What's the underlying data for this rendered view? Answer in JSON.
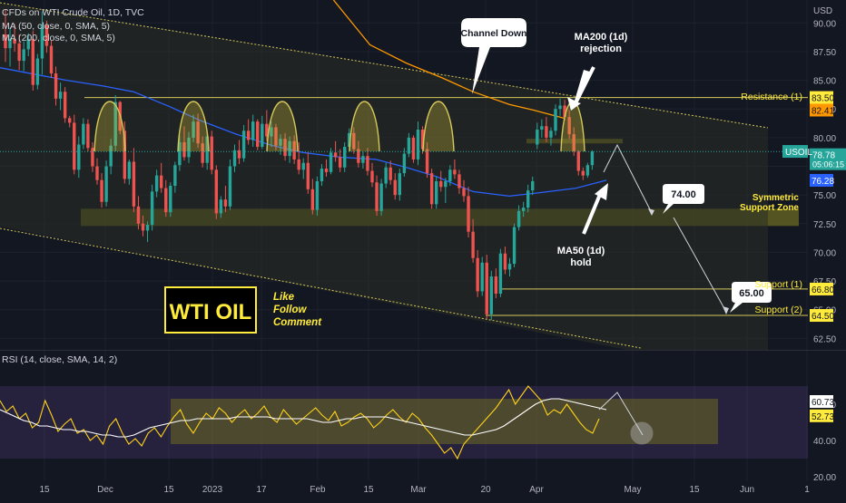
{
  "header": {
    "title": "CFDs on WTI Crude Oil, 1D, TVC",
    "ma50_label": "MA (50, close, 0, SMA, 5)",
    "ma200_label": "MA (200, close, 0, SMA, 5)",
    "currency": "USD"
  },
  "rsi_panel": {
    "label": "RSI (14, close, SMA, 14, 2)"
  },
  "annotations": {
    "channel_down": "Channel Down",
    "ma200_line1": "MA200 (1d)",
    "ma200_line2": "rejection",
    "ma50_line1": "MA50 (1d)",
    "ma50_line2": "hold",
    "resistance": "Resistance (1)",
    "symmetric_line1": "Symmetric",
    "symmetric_line2": "Support Zone",
    "support1": "Support (1)",
    "support2": "Support (2)",
    "target1": "74.00",
    "target2": "65.00",
    "logo": "WTI OIL",
    "cta_line1": "Like",
    "cta_line2": "Follow",
    "cta_line3": "Comment"
  },
  "colors": {
    "background": "#131722",
    "grid": "#1e222d",
    "bull": "#26a69a",
    "bear": "#ef5350",
    "ma50": "#2962ff",
    "ma200": "#ff9800",
    "level": "#d4c85a",
    "zone": "#6b6a23",
    "rsi_line": "#ffd21a",
    "rsi_ma": "#ffffff",
    "rsi_band": "#7e57c2",
    "logo_yellow": "#ffeb3b",
    "price_tag": "#26a69a",
    "ma50_tag": "#2962ff"
  },
  "chart_data": [
    {
      "type": "candlestick",
      "ticker": "USOIL",
      "price_axis_labels": [
        "90.00",
        "87.50",
        "85.00",
        "82.50",
        "80.00",
        "77.50",
        "75.00",
        "72.50",
        "70.00",
        "67.50",
        "65.00",
        "62.50"
      ],
      "time_axis_labels": [
        "15",
        "Dec",
        "15",
        "2023",
        "17",
        "Feb",
        "15",
        "Mar",
        "20",
        "Apr",
        "May",
        "15",
        "Jun",
        "1"
      ],
      "ylim": [
        61.5,
        92.0
      ],
      "last_price": "78.78",
      "countdown": "05:06:15",
      "ma200_value": "82.41",
      "ma50_value": "76.28",
      "levels": [
        {
          "name": "Resistance (1)",
          "value": 83.5,
          "value_label": "83.50"
        },
        {
          "name": "Support (1)",
          "value": 66.8,
          "value_label": "66.80"
        },
        {
          "name": "Support (2)",
          "value": 64.5,
          "value_label": "64.50"
        }
      ],
      "support_zone": [
        72.3,
        73.8
      ],
      "ohlc": [
        [
          89.0,
          91.2,
          86.6,
          87.8
        ],
        [
          87.8,
          89.6,
          86.2,
          88.6
        ],
        [
          88.6,
          89.9,
          87.5,
          88.2
        ],
        [
          88.2,
          89.0,
          85.9,
          86.7
        ],
        [
          86.7,
          88.4,
          85.8,
          87.7
        ],
        [
          87.7,
          89.1,
          87.1,
          88.6
        ],
        [
          88.6,
          89.3,
          84.1,
          84.6
        ],
        [
          84.6,
          87.3,
          84.2,
          86.9
        ],
        [
          86.9,
          91.0,
          85.5,
          89.8
        ],
        [
          89.8,
          90.2,
          87.4,
          88.0
        ],
        [
          88.0,
          88.5,
          85.2,
          85.6
        ],
        [
          85.6,
          86.2,
          82.8,
          83.4
        ],
        [
          83.4,
          84.8,
          82.4,
          84.0
        ],
        [
          84.0,
          84.4,
          81.3,
          81.7
        ],
        [
          81.7,
          81.9,
          80.9,
          81.3
        ],
        [
          81.3,
          82.0,
          76.8,
          77.2
        ],
        [
          77.2,
          80.1,
          76.5,
          79.4
        ],
        [
          79.4,
          81.7,
          79.0,
          81.2
        ],
        [
          81.2,
          81.6,
          78.8,
          79.1
        ],
        [
          79.1,
          79.6,
          77.0,
          77.5
        ],
        [
          77.5,
          78.2,
          75.9,
          76.3
        ],
        [
          76.3,
          76.9,
          73.9,
          74.4
        ],
        [
          74.4,
          78.0,
          74.0,
          77.5
        ],
        [
          77.5,
          79.9,
          76.8,
          79.3
        ],
        [
          79.3,
          83.7,
          78.8,
          83.1
        ],
        [
          83.1,
          83.2,
          80.3,
          80.6
        ],
        [
          80.6,
          81.4,
          76.0,
          76.4
        ],
        [
          76.4,
          78.1,
          75.9,
          77.9
        ],
        [
          77.9,
          79.1,
          73.5,
          74.0
        ],
        [
          74.0,
          74.9,
          72.0,
          72.5
        ],
        [
          72.5,
          73.2,
          71.4,
          71.9
        ],
        [
          71.9,
          72.7,
          70.9,
          72.4
        ],
        [
          72.4,
          75.9,
          71.9,
          75.3
        ],
        [
          75.3,
          77.2,
          74.8,
          76.7
        ],
        [
          76.7,
          77.8,
          75.2,
          75.6
        ],
        [
          75.6,
          76.3,
          73.1,
          73.5
        ],
        [
          73.5,
          76.1,
          73.1,
          75.8
        ],
        [
          75.8,
          77.9,
          75.2,
          77.6
        ],
        [
          77.6,
          80.2,
          77.1,
          79.6
        ],
        [
          79.6,
          81.0,
          78.0,
          78.3
        ],
        [
          78.3,
          80.5,
          77.8,
          80.0
        ],
        [
          80.0,
          82.0,
          79.6,
          81.4
        ],
        [
          81.4,
          82.1,
          79.1,
          79.5
        ],
        [
          79.5,
          80.1,
          77.4,
          77.8
        ],
        [
          77.8,
          80.4,
          77.2,
          80.1
        ],
        [
          80.1,
          80.6,
          76.8,
          77.2
        ],
        [
          77.2,
          77.6,
          72.9,
          73.4
        ],
        [
          73.4,
          74.9,
          73.0,
          74.6
        ],
        [
          74.6,
          75.8,
          73.5,
          74.0
        ],
        [
          74.0,
          78.1,
          73.7,
          77.5
        ],
        [
          77.5,
          79.4,
          77.0,
          78.9
        ],
        [
          78.9,
          79.8,
          77.7,
          78.2
        ],
        [
          78.2,
          81.1,
          77.9,
          80.6
        ],
        [
          80.6,
          81.6,
          79.4,
          79.8
        ],
        [
          79.8,
          82.0,
          79.2,
          81.4
        ],
        [
          81.4,
          81.6,
          78.9,
          79.2
        ],
        [
          79.2,
          81.9,
          79.0,
          81.2
        ],
        [
          81.2,
          82.4,
          79.7,
          80.1
        ],
        [
          80.1,
          81.4,
          79.2,
          80.9
        ],
        [
          80.9,
          81.2,
          78.9,
          79.3
        ],
        [
          79.3,
          80.3,
          78.5,
          79.9
        ],
        [
          79.9,
          80.4,
          78.0,
          78.4
        ],
        [
          78.4,
          80.1,
          77.8,
          79.7
        ],
        [
          79.7,
          80.2,
          77.7,
          78.1
        ],
        [
          78.1,
          79.6,
          76.8,
          77.2
        ],
        [
          77.2,
          78.2,
          76.4,
          77.8
        ],
        [
          77.8,
          78.7,
          75.1,
          75.5
        ],
        [
          75.5,
          76.4,
          73.3,
          73.7
        ],
        [
          73.7,
          76.6,
          73.2,
          76.2
        ],
        [
          76.2,
          77.7,
          75.8,
          77.3
        ],
        [
          77.3,
          78.1,
          76.6,
          77.0
        ],
        [
          77.0,
          79.1,
          76.8,
          78.7
        ],
        [
          78.7,
          79.7,
          77.9,
          78.3
        ],
        [
          78.3,
          79.0,
          77.0,
          77.4
        ],
        [
          77.4,
          79.6,
          77.0,
          79.2
        ],
        [
          79.2,
          80.8,
          78.8,
          80.4
        ],
        [
          80.4,
          80.9,
          78.6,
          79.0
        ],
        [
          79.0,
          79.7,
          77.4,
          77.8
        ],
        [
          77.8,
          78.8,
          77.3,
          78.4
        ],
        [
          78.4,
          79.1,
          76.7,
          77.1
        ],
        [
          77.1,
          77.8,
          75.7,
          76.1
        ],
        [
          76.1,
          76.7,
          73.2,
          73.6
        ],
        [
          73.6,
          76.4,
          73.2,
          76.0
        ],
        [
          76.0,
          77.8,
          75.6,
          77.4
        ],
        [
          77.4,
          78.0,
          75.9,
          76.3
        ],
        [
          76.3,
          76.9,
          74.6,
          75.0
        ],
        [
          75.0,
          77.3,
          74.5,
          76.9
        ],
        [
          76.9,
          79.1,
          76.6,
          78.6
        ],
        [
          78.6,
          80.4,
          78.3,
          80.0
        ],
        [
          80.0,
          80.2,
          77.8,
          78.1
        ],
        [
          78.1,
          81.4,
          77.6,
          80.7
        ],
        [
          80.7,
          81.0,
          78.6,
          79.0
        ],
        [
          79.0,
          79.6,
          76.5,
          76.9
        ],
        [
          76.9,
          77.3,
          73.8,
          74.2
        ],
        [
          74.2,
          76.6,
          73.8,
          76.2
        ],
        [
          76.2,
          77.1,
          75.3,
          75.7
        ],
        [
          75.7,
          76.5,
          74.3,
          76.2
        ],
        [
          76.2,
          77.6,
          75.8,
          77.2
        ],
        [
          77.2,
          78.1,
          76.4,
          76.8
        ],
        [
          76.8,
          77.2,
          75.1,
          75.6
        ],
        [
          75.6,
          76.3,
          74.4,
          74.9
        ],
        [
          74.9,
          75.7,
          71.3,
          71.8
        ],
        [
          71.8,
          72.9,
          69.1,
          69.5
        ],
        [
          69.5,
          70.2,
          66.1,
          66.6
        ],
        [
          66.6,
          69.6,
          66.2,
          69.1
        ],
        [
          69.1,
          69.8,
          64.2,
          64.6
        ],
        [
          64.6,
          68.4,
          64.1,
          67.9
        ],
        [
          67.9,
          68.6,
          66.0,
          66.4
        ],
        [
          66.4,
          70.3,
          66.1,
          69.9
        ],
        [
          69.9,
          70.5,
          68.1,
          68.5
        ],
        [
          68.5,
          69.5,
          67.9,
          69.0
        ],
        [
          69.0,
          72.5,
          68.7,
          72.2
        ],
        [
          72.2,
          74.1,
          71.9,
          73.6
        ],
        [
          73.6,
          74.4,
          73.1,
          73.9
        ],
        [
          73.9,
          75.9,
          73.5,
          75.4
        ],
        [
          75.4,
          76.6,
          75.0,
          76.2
        ],
        [
          79.4,
          81.3,
          79.0,
          80.7
        ],
        [
          80.7,
          81.6,
          80.0,
          81.0
        ],
        [
          81.0,
          81.8,
          79.6,
          80.0
        ],
        [
          80.0,
          80.9,
          79.3,
          80.6
        ],
        [
          80.6,
          82.9,
          80.2,
          82.5
        ],
        [
          82.5,
          83.4,
          81.9,
          82.8
        ],
        [
          82.8,
          83.3,
          81.5,
          81.8
        ],
        [
          81.8,
          82.4,
          79.9,
          80.3
        ],
        [
          80.3,
          80.9,
          78.4,
          78.8
        ],
        [
          78.8,
          78.9,
          76.7,
          77.1
        ],
        [
          77.1,
          77.4,
          76.3,
          76.7
        ],
        [
          76.7,
          77.8,
          76.5,
          77.6
        ],
        [
          77.6,
          78.9,
          77.2,
          78.78
        ]
      ],
      "ma50": [
        [
          0,
          86.1
        ],
        [
          0.06,
          85.5
        ],
        [
          0.11,
          85.0
        ],
        [
          0.17,
          84.5
        ],
        [
          0.22,
          84.0
        ],
        [
          0.28,
          82.7
        ],
        [
          0.33,
          81.5
        ],
        [
          0.39,
          80.3
        ],
        [
          0.45,
          79.3
        ],
        [
          0.5,
          78.7
        ],
        [
          0.56,
          78.3
        ],
        [
          0.62,
          78.1
        ],
        [
          0.67,
          77.4
        ],
        [
          0.72,
          76.6
        ],
        [
          0.78,
          75.3
        ],
        [
          0.84,
          74.9
        ],
        [
          0.89,
          75.2
        ],
        [
          0.95,
          75.6
        ],
        [
          1,
          76.28
        ]
      ],
      "ma200": [
        [
          0.55,
          92.0
        ],
        [
          0.61,
          88.1
        ],
        [
          0.67,
          86.5
        ],
        [
          0.73,
          85.2
        ],
        [
          0.78,
          84.0
        ],
        [
          0.84,
          82.9
        ],
        [
          0.88,
          82.4
        ],
        [
          0.93,
          81.7
        ]
      ],
      "projection": [
        {
          "from": 80.2,
          "to": 74.0,
          "label": "74.00"
        },
        {
          "from": 74.0,
          "to": 65.0,
          "label": "65.00"
        }
      ]
    },
    {
      "type": "line",
      "title": "RSI (14, close, SMA, 14, 2)",
      "ylim": [
        18,
        82
      ],
      "axis_labels": [
        "60.00",
        "40.00",
        "20.00"
      ],
      "band": [
        30,
        70
      ],
      "series": [
        {
          "name": "RSI",
          "value_label": "52.73",
          "values": [
            62,
            56,
            59,
            52,
            55,
            47,
            50,
            62,
            54,
            45,
            49,
            52,
            44,
            46,
            40,
            43,
            38,
            48,
            52,
            44,
            38,
            41,
            37,
            44,
            47,
            42,
            48,
            53,
            57,
            49,
            44,
            50,
            55,
            52,
            58,
            55,
            50,
            54,
            57,
            52,
            55,
            59,
            53,
            50,
            57,
            53,
            49,
            52,
            55,
            58,
            54,
            51,
            56,
            48,
            50,
            53,
            55,
            52,
            47,
            50,
            54,
            57,
            53,
            50,
            55,
            52,
            47,
            43,
            38,
            33,
            36,
            30,
            38,
            42,
            46,
            50,
            54,
            58,
            63,
            68,
            60,
            65,
            70,
            66,
            62,
            54,
            57,
            55,
            60,
            55,
            50,
            46,
            44,
            52
          ]
        },
        {
          "name": "RSI-based MA",
          "value_label": "60.73",
          "values": [
            57,
            55,
            53,
            51,
            50,
            48,
            48,
            47,
            46,
            46,
            45,
            45,
            44,
            43,
            43,
            42,
            42,
            43,
            45,
            47,
            48,
            49,
            50,
            51,
            51,
            52,
            52,
            52,
            52,
            52,
            53,
            53,
            53,
            53,
            53,
            52,
            52,
            52,
            52,
            52,
            51,
            50,
            50,
            51,
            52,
            52,
            53,
            53,
            53,
            53,
            52,
            51,
            50,
            49,
            48,
            47,
            46,
            45,
            44,
            43,
            43,
            44,
            45,
            46,
            48,
            51,
            54,
            57,
            60,
            62,
            63,
            63,
            62,
            61,
            60,
            59,
            58,
            57
          ]
        }
      ]
    }
  ]
}
